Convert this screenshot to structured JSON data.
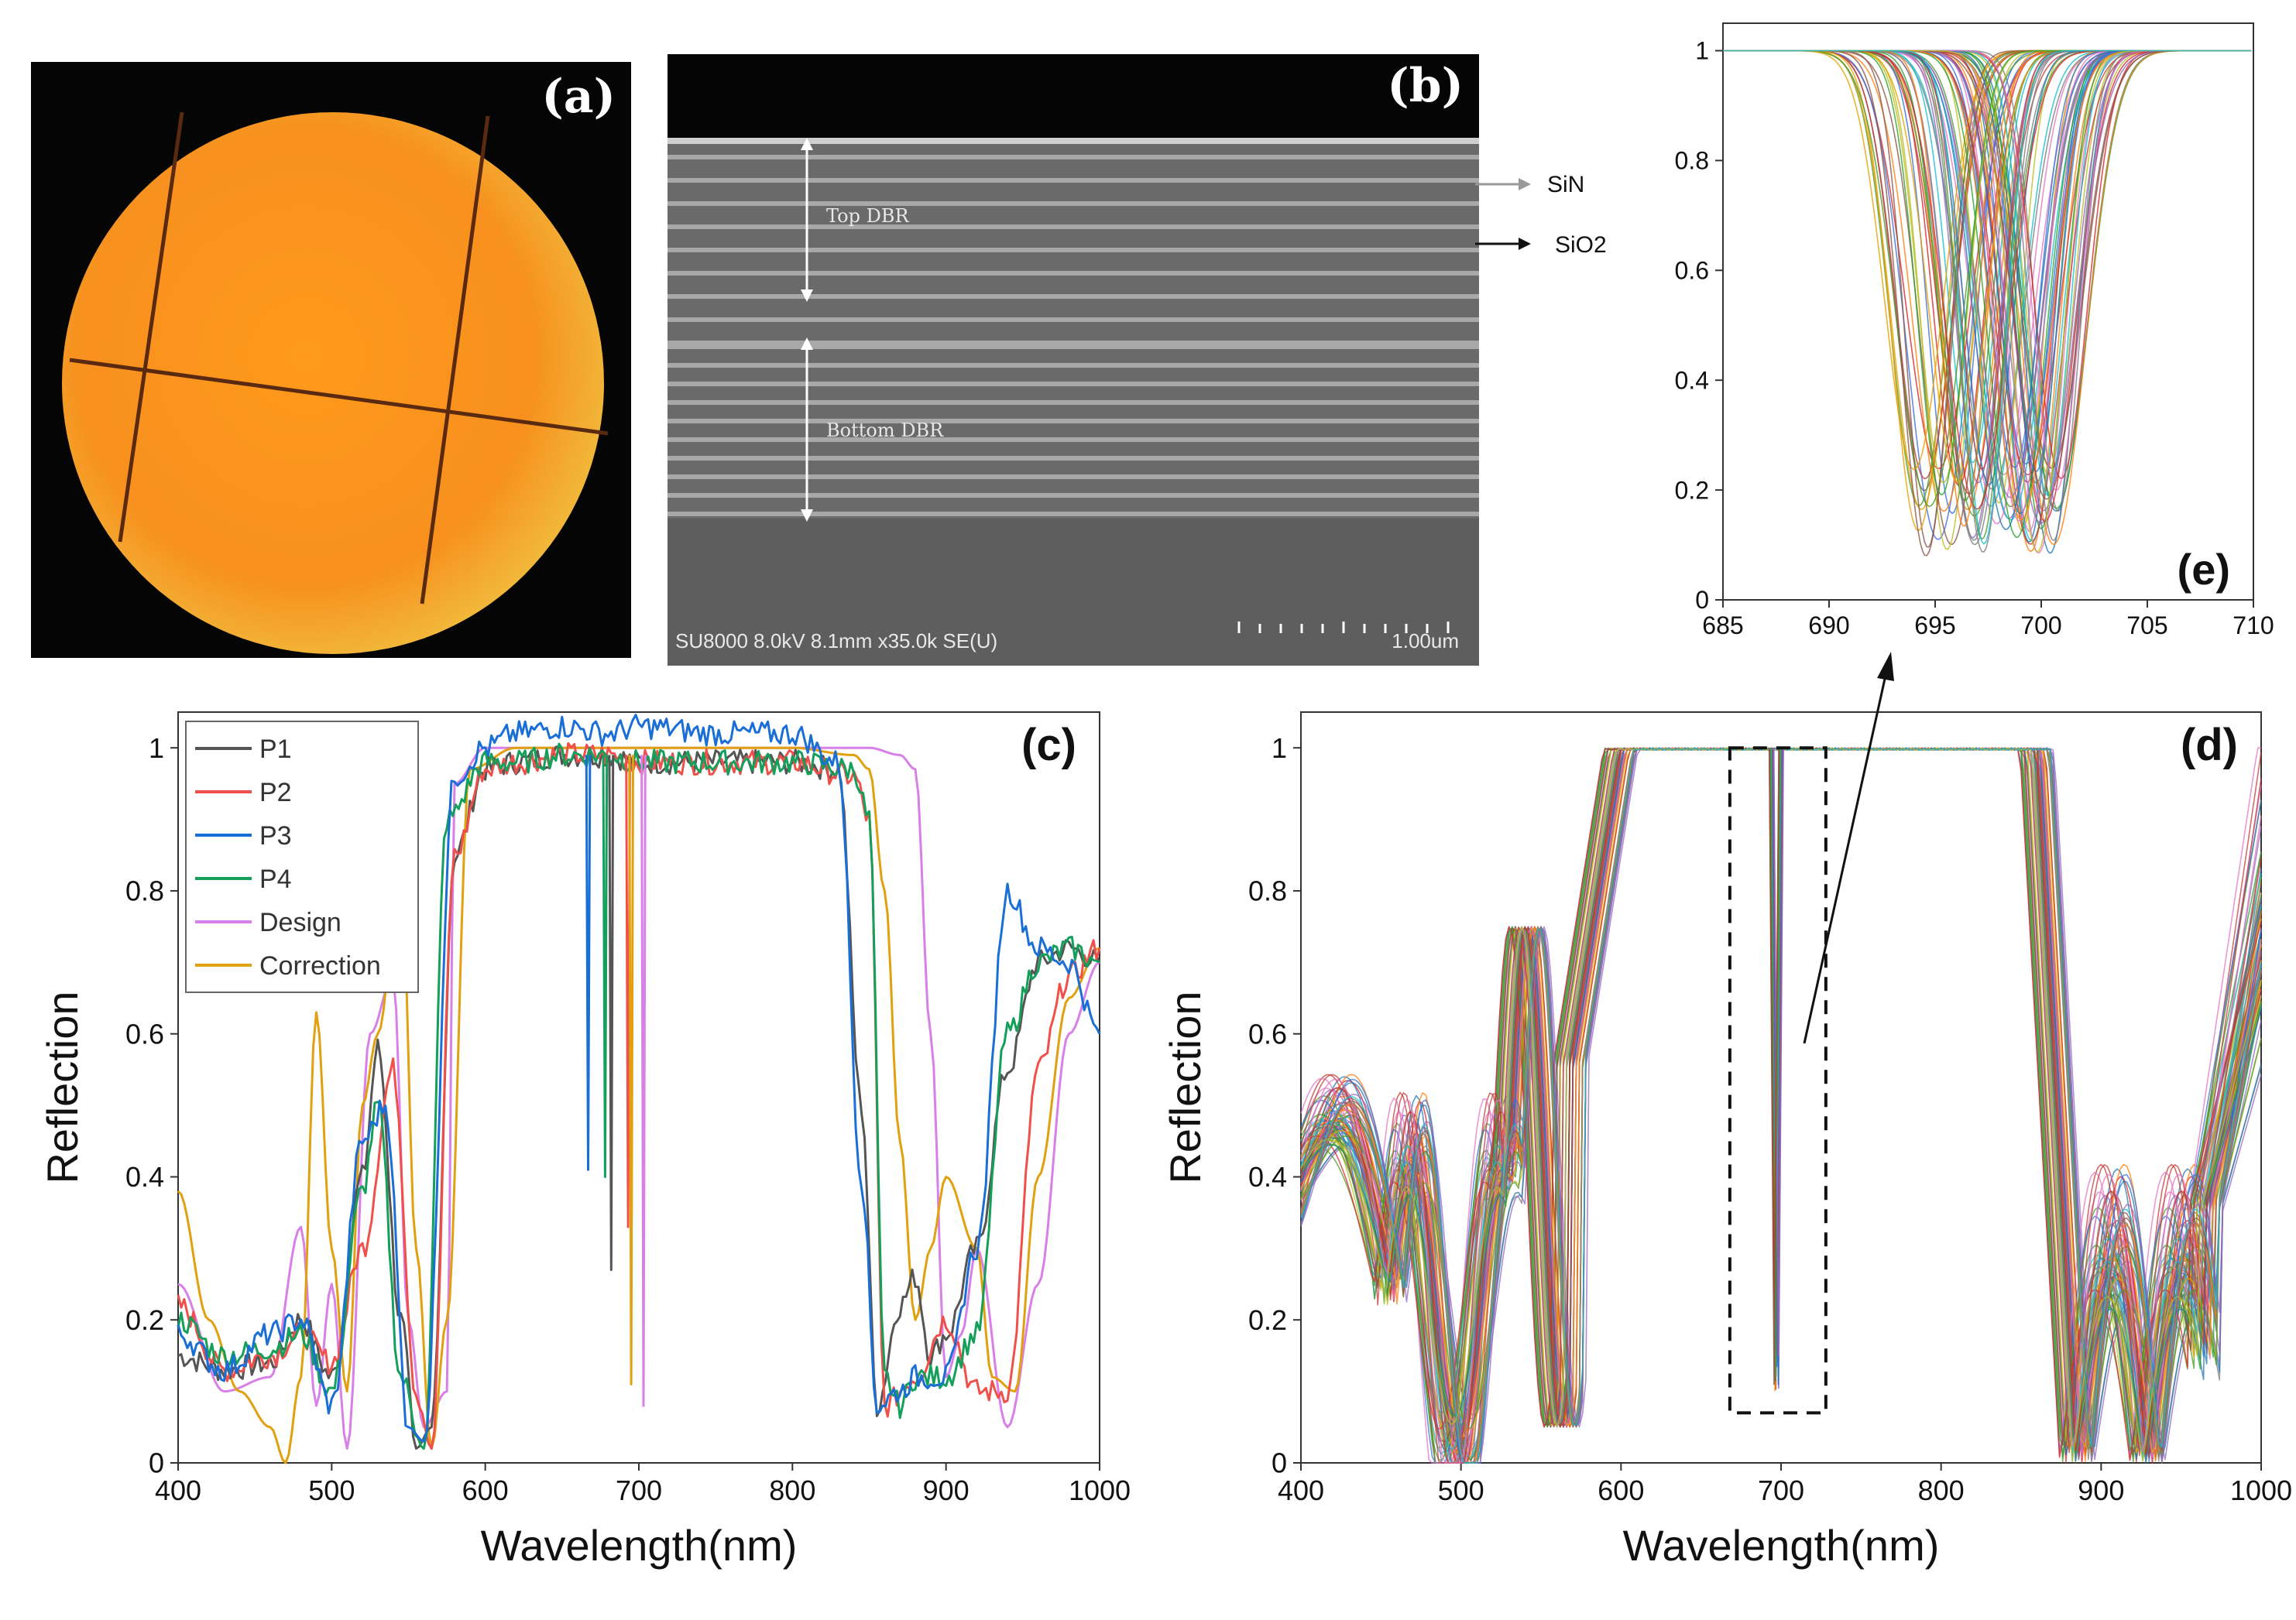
{
  "panels": {
    "a": {
      "label": "(a)"
    },
    "b": {
      "label": "(b)",
      "top_dbr": "Top DBR",
      "bottom_dbr": "Bottom DBR",
      "sin_label": "SiN",
      "sio2_label": "SiO2",
      "info": "SU8000 8.0kV 8.1mm x35.0k SE(U)",
      "scale": "1.00um"
    },
    "c": {
      "label": "(c)"
    },
    "d": {
      "label": "(d)"
    },
    "e": {
      "label": "(e)"
    }
  },
  "colors": {
    "P1": "#555555",
    "P2": "#f0504a",
    "P3": "#1a6fd6",
    "P4": "#14a05a",
    "Design": "#d880e8",
    "Correction": "#e0a010"
  },
  "chart_data": [
    {
      "id": "c",
      "type": "line",
      "xlabel": "Wavelength(nm)",
      "ylabel": "Reflection",
      "xlim": [
        400,
        1000
      ],
      "ylim": [
        0,
        1.05
      ],
      "xticks": [
        "400",
        "500",
        "600",
        "700",
        "800",
        "900",
        "1000"
      ],
      "yticks": [
        "0",
        "0.2",
        "0.4",
        "0.6",
        "0.8",
        "1"
      ],
      "legend": [
        "P1",
        "P2",
        "P3",
        "P4",
        "Design",
        "Correction"
      ],
      "series": [
        {
          "name": "P1",
          "x": [
            400,
            430,
            460,
            480,
            500,
            520,
            530,
            545,
            555,
            565,
            580,
            600,
            620,
            650,
            680,
            700,
            750,
            800,
            830,
            845,
            855,
            870,
            880,
            890,
            900,
            920,
            940,
            960,
            980,
            1000
          ],
          "y": [
            0.15,
            0.13,
            0.14,
            0.2,
            0.12,
            0.4,
            0.58,
            0.2,
            0.02,
            0.05,
            0.85,
            0.97,
            0.98,
            0.99,
            0.99,
            0.98,
            0.98,
            0.98,
            0.97,
            0.5,
            0.08,
            0.22,
            0.26,
            0.15,
            0.18,
            0.3,
            0.55,
            0.7,
            0.72,
            0.7
          ]
        },
        {
          "name": "P2",
          "x": [
            400,
            430,
            460,
            480,
            500,
            520,
            540,
            555,
            565,
            580,
            600,
            620,
            650,
            680,
            700,
            750,
            800,
            840,
            850,
            860,
            880,
            900,
            920,
            940,
            960,
            980,
            1000
          ],
          "y": [
            0.22,
            0.13,
            0.15,
            0.18,
            0.14,
            0.3,
            0.55,
            0.1,
            0.02,
            0.85,
            0.97,
            0.98,
            0.99,
            0.99,
            0.98,
            0.98,
            0.98,
            0.96,
            0.9,
            0.08,
            0.12,
            0.2,
            0.1,
            0.1,
            0.55,
            0.68,
            0.72
          ]
        },
        {
          "name": "P3",
          "x": [
            400,
            430,
            460,
            480,
            500,
            520,
            535,
            550,
            560,
            580,
            600,
            620,
            650,
            680,
            700,
            750,
            800,
            830,
            845,
            855,
            870,
            880,
            900,
            920,
            940,
            960,
            980,
            1000
          ],
          "y": [
            0.18,
            0.13,
            0.18,
            0.2,
            0.08,
            0.45,
            0.5,
            0.05,
            0.03,
            0.96,
            1.0,
            1.02,
            1.03,
            1.02,
            1.03,
            1.02,
            1.02,
            0.98,
            0.4,
            0.08,
            0.1,
            0.12,
            0.12,
            0.3,
            0.8,
            0.72,
            0.7,
            0.6
          ]
        },
        {
          "name": "P4",
          "x": [
            400,
            430,
            460,
            480,
            500,
            520,
            530,
            545,
            560,
            575,
            600,
            620,
            650,
            680,
            700,
            750,
            800,
            840,
            850,
            860,
            870,
            880,
            900,
            920,
            940,
            960,
            980,
            1000
          ],
          "y": [
            0.2,
            0.15,
            0.16,
            0.18,
            0.1,
            0.38,
            0.5,
            0.12,
            0.02,
            0.9,
            0.98,
            0.98,
            0.99,
            0.99,
            0.98,
            0.98,
            0.98,
            0.97,
            0.9,
            0.12,
            0.08,
            0.12,
            0.12,
            0.18,
            0.6,
            0.7,
            0.72,
            0.7
          ]
        },
        {
          "name": "Design",
          "x": [
            400,
            430,
            460,
            480,
            490,
            500,
            510,
            525,
            540,
            550,
            560,
            575,
            580,
            600,
            650,
            700,
            750,
            800,
            850,
            870,
            880,
            890,
            900,
            910,
            920,
            940,
            960,
            980,
            1000
          ],
          "y": [
            0.25,
            0.1,
            0.12,
            0.33,
            0.08,
            0.25,
            0.02,
            0.6,
            0.68,
            0.2,
            0.05,
            0.1,
            0.95,
            1.0,
            1.0,
            1.0,
            1.0,
            1.0,
            1.0,
            0.99,
            0.97,
            0.6,
            0.12,
            0.18,
            0.3,
            0.05,
            0.25,
            0.6,
            0.7
          ]
        },
        {
          "name": "Correction",
          "x": [
            400,
            420,
            440,
            460,
            470,
            480,
            490,
            500,
            510,
            520,
            530,
            545,
            555,
            565,
            575,
            590,
            620,
            650,
            700,
            750,
            800,
            840,
            850,
            860,
            870,
            880,
            890,
            900,
            920,
            930,
            945,
            960,
            980,
            1000
          ],
          "y": [
            0.38,
            0.2,
            0.1,
            0.05,
            0.0,
            0.12,
            0.63,
            0.3,
            0.1,
            0.5,
            0.6,
            0.83,
            0.3,
            0.02,
            0.2,
            0.97,
            1.0,
            1.0,
            1.0,
            1.0,
            1.0,
            0.99,
            0.97,
            0.8,
            0.45,
            0.2,
            0.3,
            0.4,
            0.3,
            0.12,
            0.1,
            0.4,
            0.65,
            0.72
          ]
        }
      ]
    },
    {
      "id": "d",
      "type": "line",
      "xlabel": "Wavelength(nm)",
      "ylabel": "Reflection",
      "xlim": [
        400,
        1000
      ],
      "ylim": [
        0,
        1.05
      ],
      "xticks": [
        "400",
        "500",
        "600",
        "700",
        "800",
        "900",
        "1000"
      ],
      "yticks": [
        "0",
        "0.2",
        "0.4",
        "0.6",
        "0.8",
        "1"
      ],
      "series_count": 80,
      "resonance_nm": 697,
      "highlight_box": {
        "x_range": [
          668,
          728
        ],
        "y_range": [
          0.07,
          1.0
        ]
      }
    },
    {
      "id": "e",
      "type": "line",
      "xlim": [
        685,
        710
      ],
      "ylim": [
        0,
        1.05
      ],
      "xticks": [
        "685",
        "690",
        "695",
        "700",
        "705",
        "710"
      ],
      "yticks": [
        "0",
        "0.2",
        "0.4",
        "0.6",
        "0.8",
        "1"
      ],
      "series_count": 80,
      "center_range_nm": [
        694,
        701
      ],
      "min_reflection_range": [
        0.08,
        0.25
      ]
    }
  ]
}
